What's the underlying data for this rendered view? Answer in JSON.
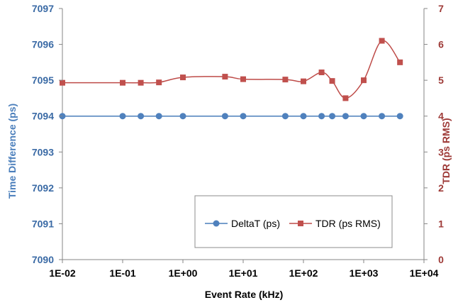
{
  "chart_data": {
    "type": "line",
    "title": "",
    "xlabel": "Event Rate (kHz)",
    "ylabel_left": "Time Difference (ps)",
    "ylabel_right": "TDR (ps RMS)",
    "x_scale": "log",
    "xlim": [
      0.01,
      10000
    ],
    "ylim_left": [
      7090,
      7097
    ],
    "ylim_right": [
      0,
      7
    ],
    "x_ticks": [
      "1E-02",
      "1E-01",
      "1E+00",
      "1E+01",
      "1E+02",
      "1E+03",
      "1E+04"
    ],
    "y_ticks_left": [
      "7090",
      "7091",
      "7092",
      "7093",
      "7094",
      "7095",
      "7096",
      "7097"
    ],
    "y_ticks_right": [
      "0",
      "1",
      "2",
      "3",
      "4",
      "5",
      "6",
      "7"
    ],
    "grid": false,
    "legend_position": "bottom-right",
    "series": [
      {
        "name": "DeltaT (ps)",
        "axis": "left",
        "marker": "circle",
        "smooth": false,
        "color": "#4a7ebb",
        "x": [
          0.01,
          0.1,
          0.2,
          0.4,
          1,
          5,
          10,
          50,
          100,
          200,
          300,
          500,
          1000,
          2000,
          4000
        ],
        "y": [
          7094,
          7094,
          7094,
          7094,
          7094,
          7094,
          7094,
          7094,
          7094,
          7094,
          7094,
          7094,
          7094,
          7094,
          7094
        ]
      },
      {
        "name": "TDR (ps RMS)",
        "axis": "right",
        "marker": "square",
        "smooth": true,
        "color": "#be4b48",
        "x": [
          0.01,
          0.1,
          0.2,
          0.4,
          1,
          5,
          10,
          50,
          100,
          200,
          300,
          500,
          1000,
          2000,
          4000
        ],
        "y": [
          4.93,
          4.93,
          4.93,
          4.94,
          5.08,
          5.1,
          5.03,
          5.02,
          4.97,
          5.22,
          4.98,
          4.5,
          5.0,
          6.1,
          5.5
        ]
      }
    ]
  }
}
